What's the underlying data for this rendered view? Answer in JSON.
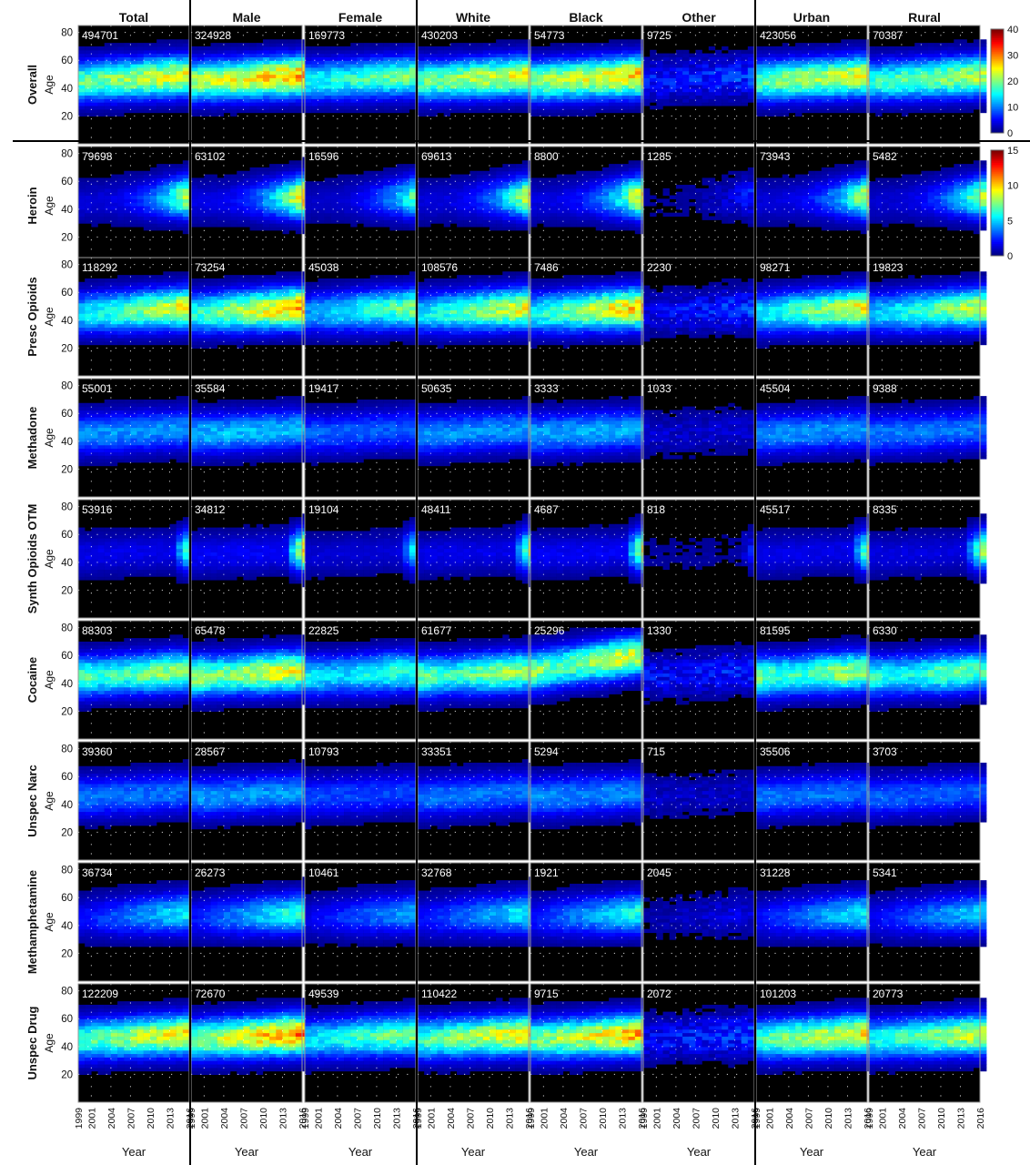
{
  "chart_data": {
    "type": "heatmap",
    "columns": [
      "Total",
      "Male",
      "Female",
      "White",
      "Black",
      "Other",
      "Urban",
      "Rural"
    ],
    "rows": [
      {
        "label": "Overall",
        "counts": [
          "494701",
          "324928",
          "169773",
          "430203",
          "54773",
          "9725",
          "423056",
          "70387"
        ]
      },
      {
        "label": "Heroin",
        "counts": [
          "79698",
          "63102",
          "16596",
          "69613",
          "8800",
          "1285",
          "73943",
          "5482"
        ]
      },
      {
        "label": "Presc Opioids",
        "counts": [
          "118292",
          "73254",
          "45038",
          "108576",
          "7486",
          "2230",
          "98271",
          "19823"
        ]
      },
      {
        "label": "Methadone",
        "counts": [
          "55001",
          "35584",
          "19417",
          "50635",
          "3333",
          "1033",
          "45504",
          "9388"
        ]
      },
      {
        "label": "Synth Opioids OTM",
        "counts": [
          "53916",
          "34812",
          "19104",
          "48411",
          "4687",
          "818",
          "45517",
          "8335"
        ]
      },
      {
        "label": "Cocaine",
        "counts": [
          "88303",
          "65478",
          "22825",
          "61677",
          "25296",
          "1330",
          "81595",
          "6330"
        ]
      },
      {
        "label": "Unspec Narc",
        "counts": [
          "39360",
          "28567",
          "10793",
          "33351",
          "5294",
          "715",
          "35506",
          "3703"
        ]
      },
      {
        "label": "Methamphetamine",
        "counts": [
          "36734",
          "26273",
          "10461",
          "32768",
          "1921",
          "2045",
          "31228",
          "5341"
        ]
      },
      {
        "label": "Unspec Drug",
        "counts": [
          "122209",
          "72670",
          "49539",
          "110422",
          "9715",
          "2072",
          "101203",
          "20773"
        ]
      }
    ],
    "x_ticks": [
      "1999",
      "2001",
      "2004",
      "2007",
      "2010",
      "2013",
      "2016"
    ],
    "xlabel": "Year",
    "y_ticks": [
      "20",
      "40",
      "60",
      "80"
    ],
    "ylabel": "Age",
    "xlim": [
      1999,
      2016
    ],
    "ylim": [
      0,
      85
    ],
    "colorbars": [
      {
        "applies_to": "Overall",
        "ticks": [
          "0",
          "10",
          "20",
          "30",
          "40"
        ],
        "range": [
          0,
          40
        ]
      },
      {
        "applies_to": "Drug rows",
        "ticks": [
          "0",
          "5",
          "10",
          "15"
        ],
        "range": [
          0,
          15
        ]
      }
    ],
    "colormap": "jet",
    "background": "#000000"
  }
}
